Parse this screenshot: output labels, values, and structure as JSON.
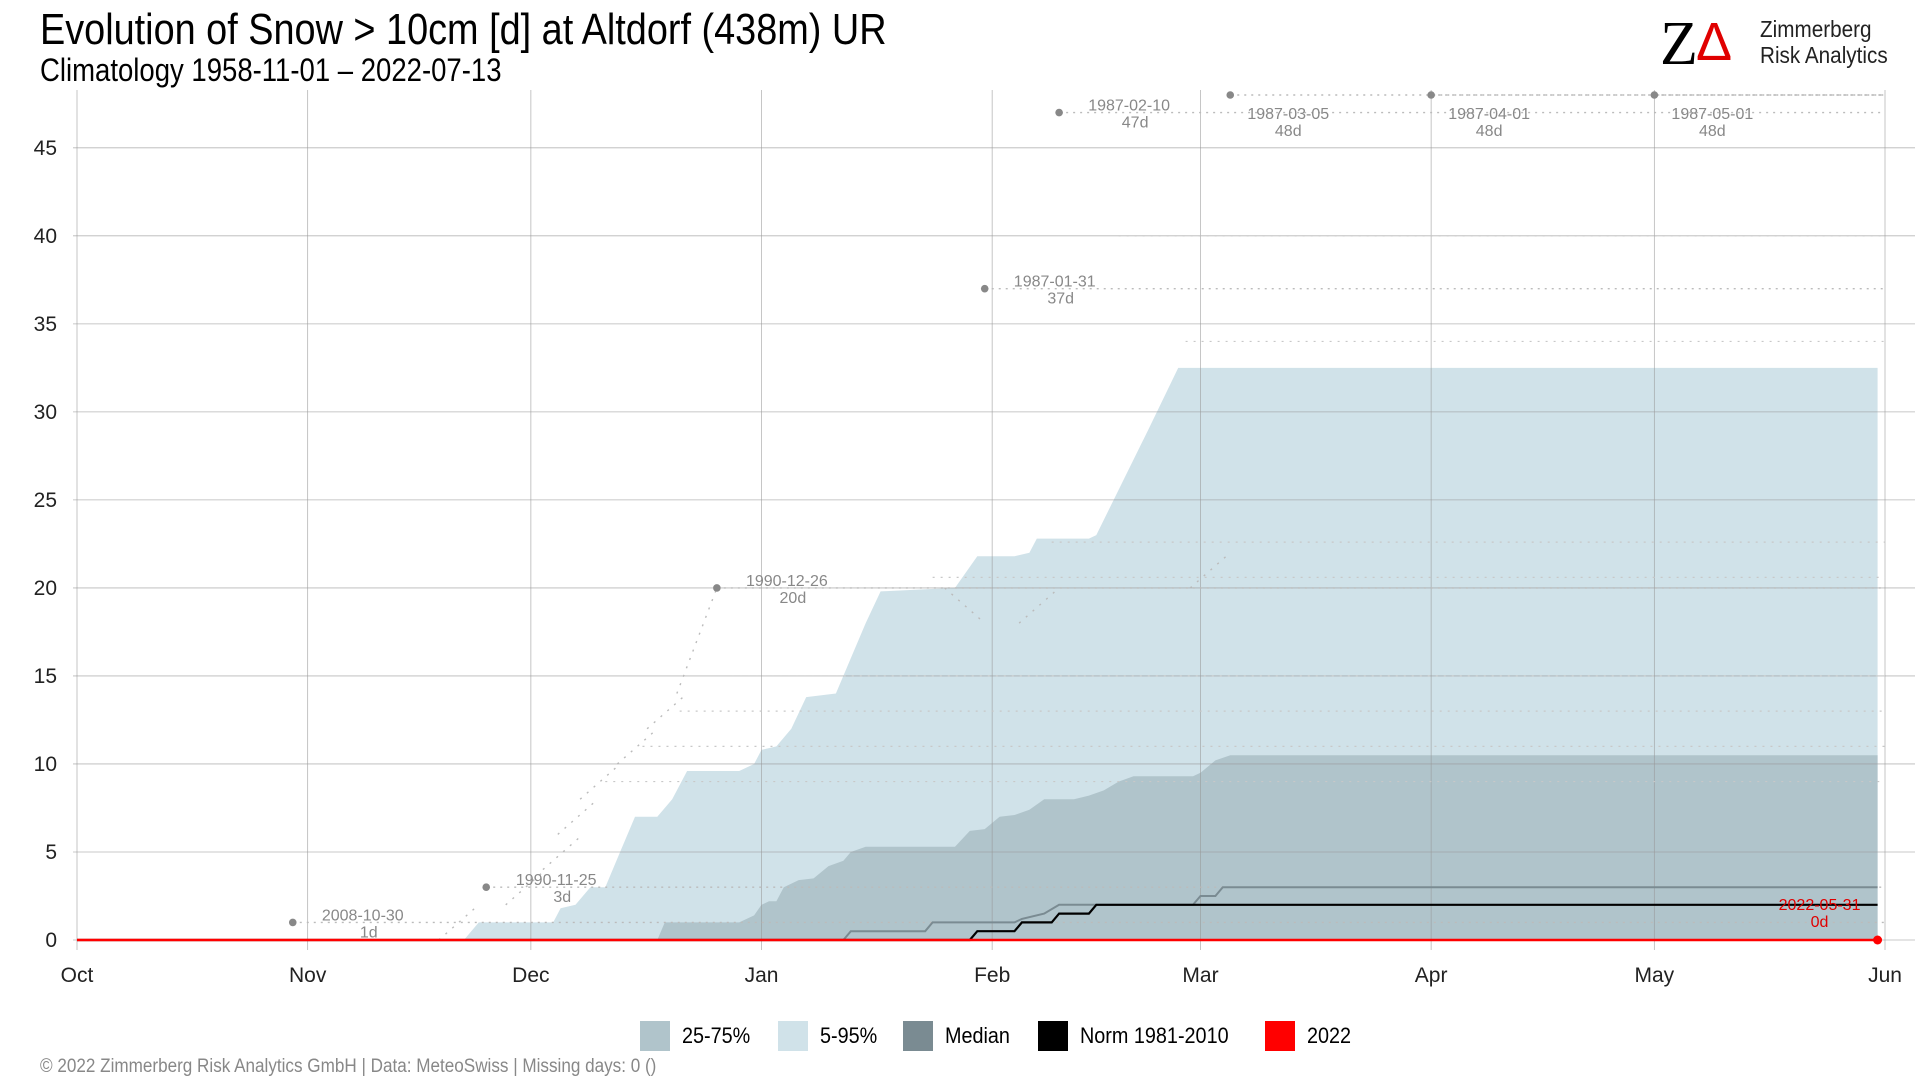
{
  "colors": {
    "band_5_95": "#d0e2e9",
    "band_25_75": "#b0c4cb",
    "median": "#7a8b92",
    "norm": "#000000",
    "year_2022": "#ff0000",
    "gridline": "#999999",
    "records": "#888888",
    "annotation_red": "#e00000"
  },
  "chart_data": {
    "type": "area",
    "title": "Evolution of Snow > 10cm [d] at Altdorf (438m) UR",
    "subtitle": "Climatology 1958-11-01 – 2022-07-13",
    "xlabel": "",
    "ylabel": "",
    "x_domain": [
      "Oct 1",
      "Jun 1"
    ],
    "ylim": [
      0,
      48
    ],
    "x_ticks": [
      {
        "label": "Oct",
        "date": "10-01"
      },
      {
        "label": "Nov",
        "date": "11-01"
      },
      {
        "label": "Dec",
        "date": "12-01"
      },
      {
        "label": "Jan",
        "date": "01-01"
      },
      {
        "label": "Feb",
        "date": "02-01"
      },
      {
        "label": "Mar",
        "date": "03-01"
      },
      {
        "label": "Apr",
        "date": "04-01"
      },
      {
        "label": "May",
        "date": "05-01"
      },
      {
        "label": "Jun",
        "date": "06-01"
      }
    ],
    "y_ticks": [
      0,
      5,
      10,
      15,
      20,
      25,
      30,
      35,
      40,
      45
    ],
    "grid": true,
    "legend_position": "bottom",
    "legend": [
      "25-75%",
      "5-95%",
      "Median",
      "Norm 1981-2010",
      "2022"
    ],
    "series": [
      {
        "name": "5-95%",
        "kind": "band",
        "points": [
          [
            "10-01",
            0
          ],
          [
            "11-22",
            0
          ],
          [
            "11-24",
            1
          ],
          [
            "12-04",
            1
          ],
          [
            "12-05",
            1.8
          ],
          [
            "12-07",
            2
          ],
          [
            "12-09",
            3
          ],
          [
            "12-11",
            3
          ],
          [
            "12-13",
            5
          ],
          [
            "12-15",
            7
          ],
          [
            "12-18",
            7
          ],
          [
            "12-20",
            8
          ],
          [
            "12-22",
            9.6
          ],
          [
            "12-29",
            9.6
          ],
          [
            "12-31",
            10
          ],
          [
            "01-01",
            10.8
          ],
          [
            "01-03",
            11
          ],
          [
            "01-05",
            12
          ],
          [
            "01-07",
            13.8
          ],
          [
            "01-11",
            14
          ],
          [
            "01-13",
            16
          ],
          [
            "01-15",
            18
          ],
          [
            "01-17",
            19.8
          ],
          [
            "01-27",
            20
          ],
          [
            "01-30",
            21.8
          ],
          [
            "02-04",
            21.8
          ],
          [
            "02-06",
            22
          ],
          [
            "02-07",
            22.8
          ],
          [
            "02-14",
            22.8
          ],
          [
            "02-15",
            23
          ],
          [
            "02-22",
            29
          ],
          [
            "02-26",
            32.5
          ],
          [
            "05-31",
            32.5
          ]
        ]
      },
      {
        "name": "25-75%",
        "kind": "band",
        "points": [
          [
            "10-01",
            0
          ],
          [
            "12-18",
            0
          ],
          [
            "12-19",
            1
          ],
          [
            "12-29",
            1
          ],
          [
            "12-31",
            1.4
          ],
          [
            "01-01",
            2
          ],
          [
            "01-02",
            2.2
          ],
          [
            "01-03",
            2.2
          ],
          [
            "01-04",
            3
          ],
          [
            "01-06",
            3.4
          ],
          [
            "01-08",
            3.5
          ],
          [
            "01-10",
            4.2
          ],
          [
            "01-12",
            4.5
          ],
          [
            "01-13",
            5
          ],
          [
            "01-15",
            5.3
          ],
          [
            "01-27",
            5.3
          ],
          [
            "01-29",
            6.2
          ],
          [
            "01-31",
            6.3
          ],
          [
            "02-02",
            7
          ],
          [
            "02-04",
            7.1
          ],
          [
            "02-06",
            7.4
          ],
          [
            "02-08",
            8
          ],
          [
            "02-12",
            8
          ],
          [
            "02-14",
            8.2
          ],
          [
            "02-16",
            8.5
          ],
          [
            "02-18",
            9
          ],
          [
            "02-20",
            9.3
          ],
          [
            "02-26",
            9.3
          ],
          [
            "02-28",
            9.3
          ],
          [
            "03-01",
            9.5
          ],
          [
            "03-03",
            10.2
          ],
          [
            "03-05",
            10.5
          ],
          [
            "05-31",
            10.5
          ]
        ]
      },
      {
        "name": "Median",
        "kind": "line",
        "points": [
          [
            "10-01",
            0
          ],
          [
            "01-12",
            0
          ],
          [
            "01-13",
            0.5
          ],
          [
            "01-23",
            0.5
          ],
          [
            "01-24",
            1
          ],
          [
            "02-04",
            1
          ],
          [
            "02-05",
            1.2
          ],
          [
            "02-08",
            1.5
          ],
          [
            "02-10",
            2
          ],
          [
            "02-28",
            2
          ],
          [
            "03-01",
            2.5
          ],
          [
            "03-03",
            2.5
          ],
          [
            "03-04",
            3
          ],
          [
            "05-31",
            3
          ]
        ]
      },
      {
        "name": "Norm 1981-2010",
        "kind": "line",
        "points": [
          [
            "10-01",
            0
          ],
          [
            "01-29",
            0
          ],
          [
            "01-30",
            0.5
          ],
          [
            "02-04",
            0.5
          ],
          [
            "02-05",
            1
          ],
          [
            "02-09",
            1
          ],
          [
            "02-10",
            1.5
          ],
          [
            "02-14",
            1.5
          ],
          [
            "02-15",
            2
          ],
          [
            "05-31",
            2
          ]
        ]
      },
      {
        "name": "2022",
        "kind": "line",
        "points": [
          [
            "10-01",
            0
          ],
          [
            "05-31",
            0
          ]
        ]
      }
    ],
    "records": [
      {
        "date": "2008-10-30",
        "x": "10-30",
        "value": 1,
        "label": "2008-10-30",
        "days": "1d"
      },
      {
        "date": "1990-11-25",
        "x": "11-25",
        "value": 3,
        "label": "1990-11-25",
        "days": "3d"
      },
      {
        "date": "1990-12-26",
        "x": "12-26",
        "value": 20,
        "label": "1990-12-26",
        "days": "20d"
      },
      {
        "date": "1987-01-31",
        "x": "01-31",
        "value": 37,
        "label": "1987-01-31",
        "days": "37d"
      },
      {
        "date": "1987-02-10",
        "x": "02-10",
        "value": 47,
        "label": "1987-02-10",
        "days": "47d"
      },
      {
        "date": "1987-03-05",
        "x": "03-05",
        "value": 48,
        "label": "1987-03-05",
        "days": "48d"
      },
      {
        "date": "1987-04-01",
        "x": "04-01",
        "value": 48,
        "label": "1987-04-01",
        "days": "48d"
      },
      {
        "date": "1987-05-01",
        "x": "05-01",
        "value": 48,
        "label": "1987-05-01",
        "days": "48d"
      }
    ],
    "max_record_steps": [
      [
        11,
        24
      ],
      [
        12,
        3
      ],
      [
        12,
        8
      ],
      [
        12,
        10
      ],
      [
        12,
        13
      ],
      [
        12,
        18
      ],
      [
        12,
        22
      ],
      [
        12,
        26
      ],
      [
        1,
        31
      ],
      [
        2,
        10
      ],
      [
        3,
        5
      ]
    ],
    "current": {
      "date": "2022-05-31",
      "x": "05-31",
      "value": 0,
      "label": "2022-05-31",
      "days": "0d"
    }
  },
  "legend": {
    "items": [
      {
        "label": "25-75%",
        "color": "#b0c4cb"
      },
      {
        "label": "5-95%",
        "color": "#d0e2e9"
      },
      {
        "label": "Median",
        "color": "#7a8b92"
      },
      {
        "label": "Norm 1981-2010",
        "color": "#000000"
      },
      {
        "label": "2022",
        "color": "#ff0000"
      }
    ]
  },
  "logo": {
    "line1": "Zimmerberg",
    "line2": "Risk Analytics",
    "mark_z": "Z",
    "mark_delta": "Δ"
  },
  "footer": {
    "text": "©  2022 Zimmerberg Risk Analytics GmbH | Data: MeteoSwiss | Missing days: 0 ()"
  }
}
